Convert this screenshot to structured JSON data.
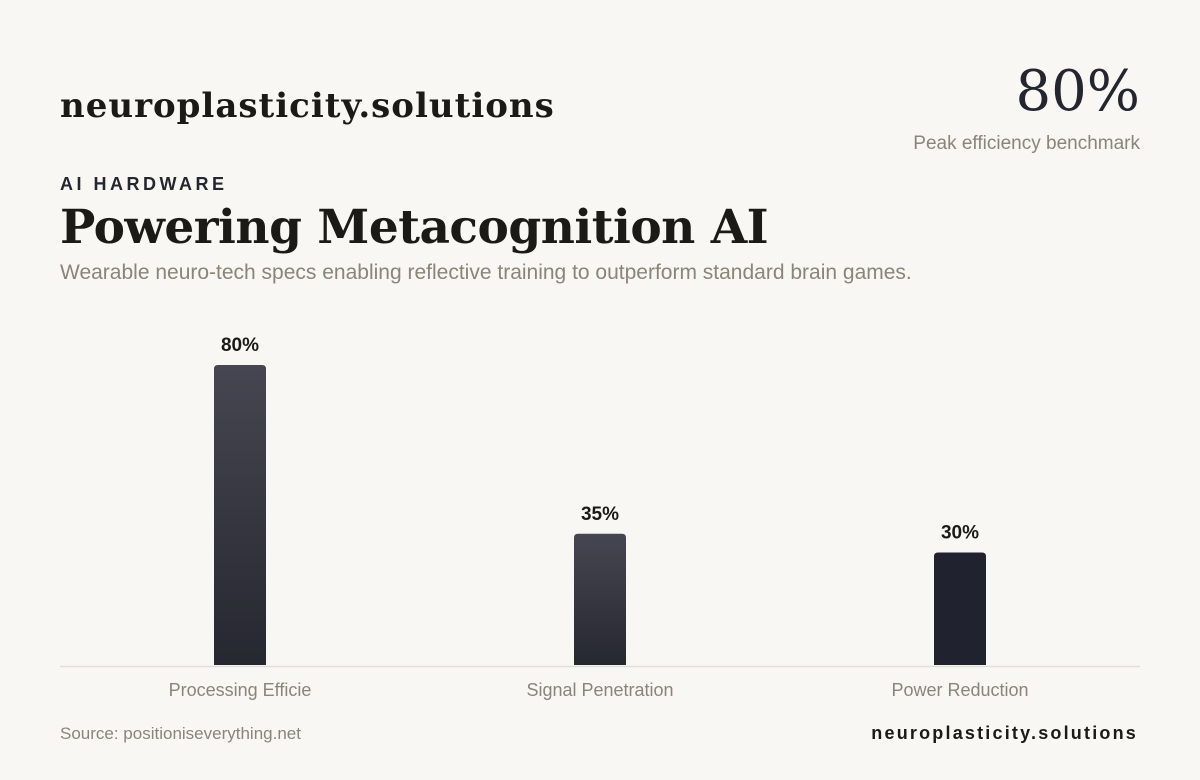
{
  "header": {
    "brand": "neuroplasticity.solutions",
    "kpi_value": "80%",
    "kpi_label": "Peak efficiency benchmark",
    "eyebrow": "AI HARDWARE",
    "title": "Powering Metacognition AI",
    "subtitle": "Wearable neuro-tech specs enabling reflective training to outperform standard brain games."
  },
  "chart_data": {
    "type": "bar",
    "categories": [
      "Processing Efficie",
      "Signal Penetration",
      "Power Reduction"
    ],
    "values": [
      80,
      35,
      30
    ],
    "value_labels": [
      "80%",
      "35%",
      "30%"
    ],
    "ylim": [
      0,
      80
    ],
    "grid": false,
    "colors": {
      "bar_top": "#454651",
      "bar_bottom": "#262830",
      "bar_last": "#20232f",
      "baseline": "#e2dfd9",
      "label": "#1b1a17",
      "category": "#8a8479"
    }
  },
  "footer": {
    "source": "Source: positioniseverything.net",
    "brand": "neuroplasticity.solutions"
  }
}
